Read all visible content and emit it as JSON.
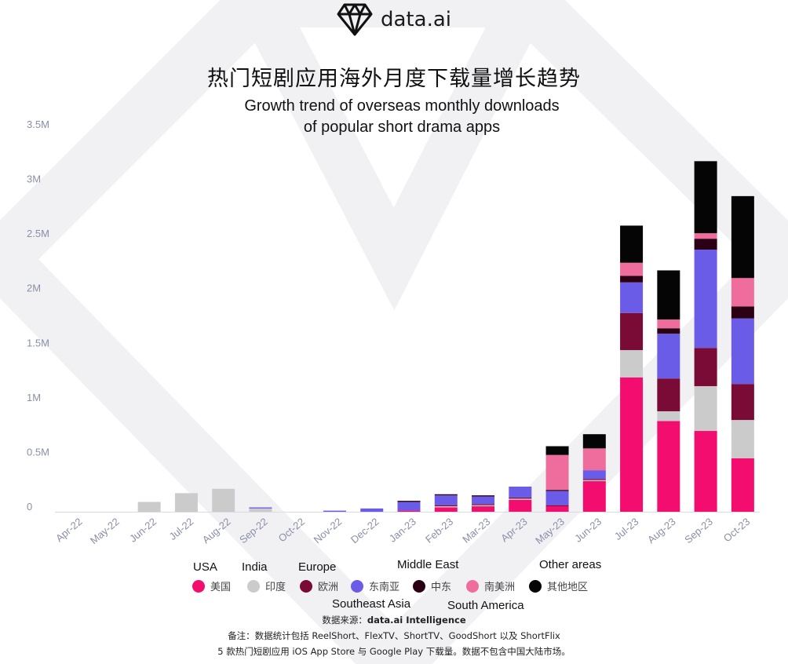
{
  "brand": {
    "name": "data",
    "suffix": ".ai"
  },
  "title_zh": "热门短剧应用海外月度下载量增长趋势",
  "title_en_line1": "Growth trend of overseas monthly downloads",
  "title_en_line2": "of popular short drama apps",
  "colors": {
    "usa": "#f20d6f",
    "india": "#cbcbcb",
    "europe": "#7a0a36",
    "southeast_asia": "#6b5ce7",
    "middle_east": "#2b0015",
    "south_america": "#ef6d9c",
    "other": "#050505",
    "axis_text": "#8a8fa8",
    "watermark": "#f1f1f4"
  },
  "legend": {
    "en": {
      "usa": "USA",
      "india": "India",
      "europe": "Europe",
      "middle_east": "Middle  East",
      "other": "Other areas",
      "southeast_asia": "Southeast Asia",
      "south_america": "South America"
    },
    "zh": {
      "usa": "美国",
      "india": "印度",
      "europe": "欧洲",
      "southeast_asia": "东南亚",
      "middle_east": "中东",
      "south_america": "南美洲",
      "other": "其他地区"
    }
  },
  "source_label": "数据来源：",
  "source_name": "data.ai Intelligence",
  "note_line1": "备注：数据统计包括 ReelShort、FlexTV、ShortTV、GoodShort 以及 ShortFlix",
  "note_line2": "5 款热门短剧应用 iOS App Store 与 Google Play 下载量。数据不包含中国大陆市场。",
  "chart_data": {
    "type": "bar",
    "stacked": true,
    "title": "Growth trend of overseas monthly downloads of popular short drama apps",
    "xlabel": "",
    "ylabel": "",
    "ylim": [
      0,
      3.5
    ],
    "yticks": [
      0,
      0.5,
      1,
      1.5,
      2,
      2.5,
      3,
      3.5
    ],
    "ytick_labels": [
      "0",
      "0.5M",
      "1M",
      "1.5M",
      "2M",
      "2.5M",
      "3M",
      "3.5M"
    ],
    "categories": [
      "Apr-22",
      "May-22",
      "Jun-22",
      "Jul-22",
      "Aug-22",
      "Sep-22",
      "Oct-22",
      "Nov-22",
      "Dec-22",
      "Jan-23",
      "Feb-23",
      "Mar-23",
      "Apr-23",
      "May-23",
      "Jun-23",
      "Jul-23",
      "Aug-23",
      "Sep-23",
      "Oct-23"
    ],
    "unit": "million downloads",
    "series": [
      {
        "key": "usa",
        "name": "美国",
        "values": [
          0,
          0,
          0,
          0,
          0,
          0,
          0,
          0,
          0,
          0.01,
          0.04,
          0.05,
          0.11,
          0.05,
          0.28,
          1.23,
          0.83,
          0.74,
          0.49
        ]
      },
      {
        "key": "india",
        "name": "印度",
        "values": [
          0,
          0,
          0.09,
          0.17,
          0.21,
          0.03,
          0,
          0,
          0,
          0,
          0.01,
          0.01,
          0.01,
          0,
          0.01,
          0.25,
          0.09,
          0.41,
          0.35
        ]
      },
      {
        "key": "europe",
        "name": "欧洲",
        "values": [
          0,
          0,
          0,
          0,
          0,
          0,
          0,
          0,
          0,
          0,
          0.01,
          0.01,
          0.01,
          0.01,
          0.01,
          0.34,
          0.3,
          0.35,
          0.33
        ]
      },
      {
        "key": "southeast_asia",
        "name": "东南亚",
        "values": [
          0,
          0,
          0,
          0,
          0,
          0.01,
          0,
          0.01,
          0.03,
          0.08,
          0.09,
          0.07,
          0.1,
          0.13,
          0.08,
          0.28,
          0.41,
          0.9,
          0.6
        ]
      },
      {
        "key": "middle_east",
        "name": "中东",
        "values": [
          0,
          0,
          0,
          0,
          0,
          0,
          0,
          0,
          0,
          0.01,
          0.01,
          0.01,
          0,
          0.01,
          0,
          0.06,
          0.05,
          0.1,
          0.11
        ]
      },
      {
        "key": "south_america",
        "name": "南美洲",
        "values": [
          0,
          0,
          0,
          0,
          0,
          0,
          0,
          0,
          0,
          0,
          0,
          0,
          0,
          0.32,
          0.2,
          0.12,
          0.08,
          0.05,
          0.26
        ]
      },
      {
        "key": "other",
        "name": "其他地区",
        "values": [
          0,
          0,
          0,
          0,
          0,
          0,
          0,
          0,
          0,
          0,
          0,
          0,
          0,
          0.08,
          0.13,
          0.34,
          0.45,
          0.66,
          0.75
        ]
      }
    ]
  }
}
